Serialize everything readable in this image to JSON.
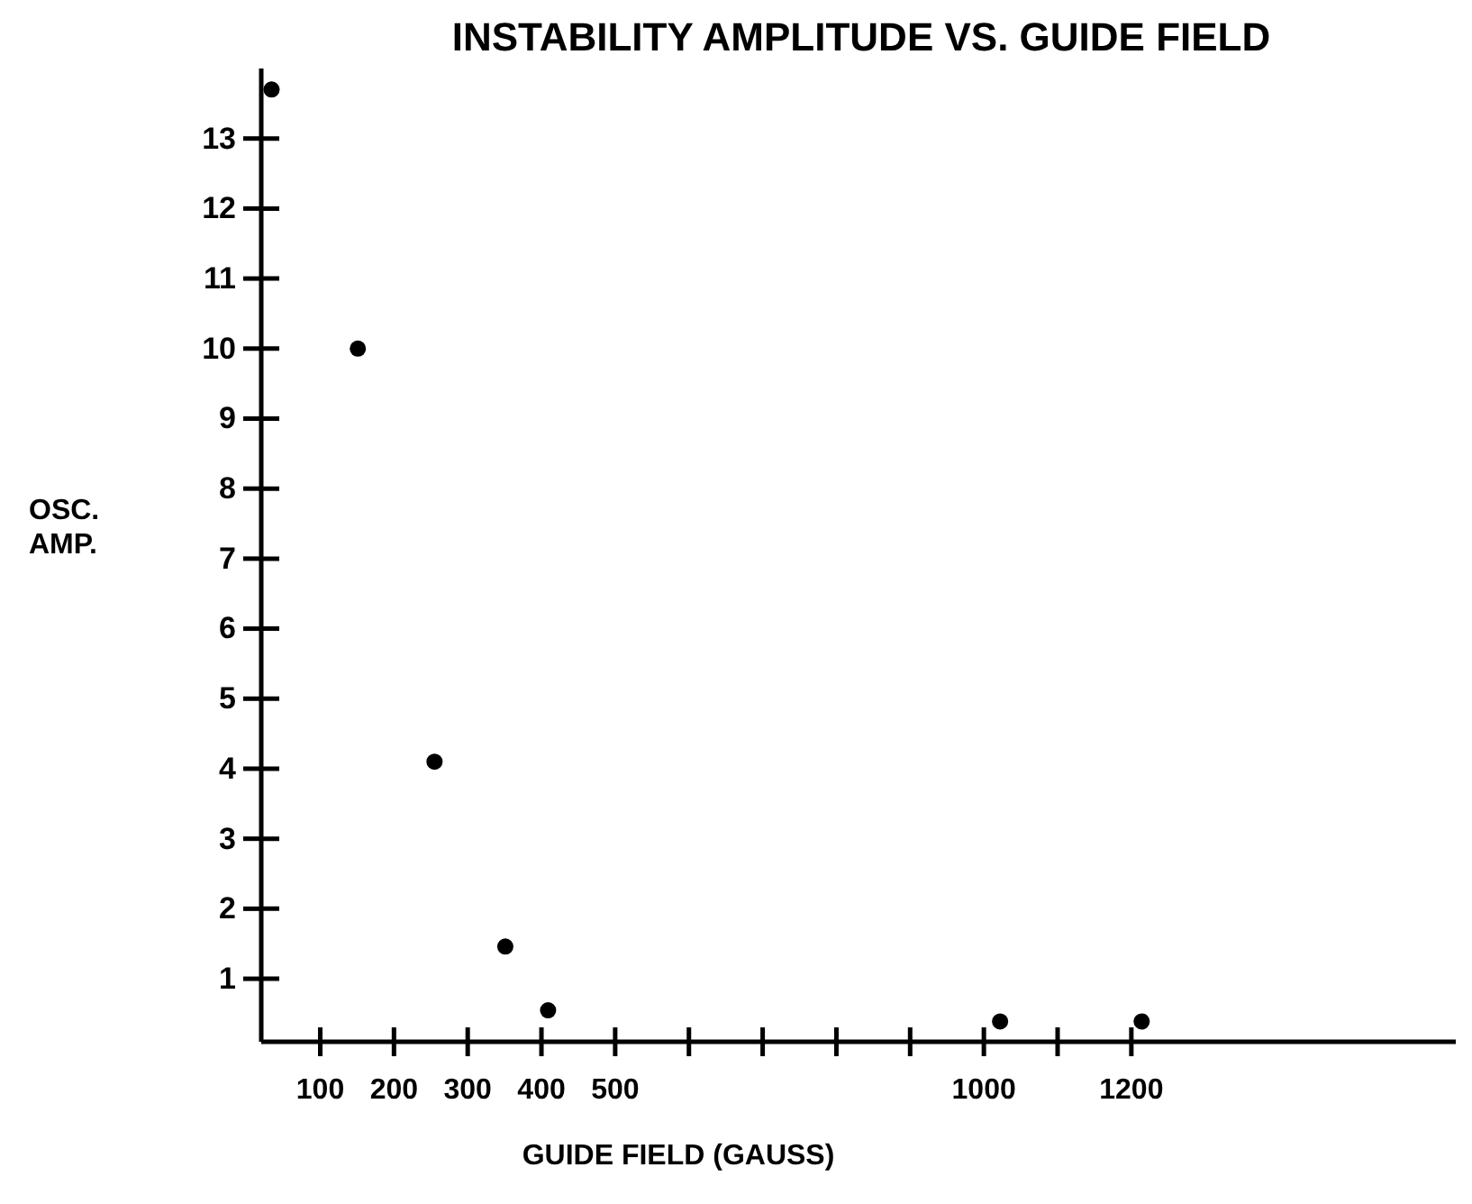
{
  "chart_data": {
    "type": "scatter",
    "title": "INSTABILITY AMPLITUDE VS. GUIDE FIELD",
    "xlabel": "GUIDE FIELD (GAUSS)",
    "ylabel": "OSC. AMP.",
    "x": [
      34,
      151,
      255,
      351,
      409,
      1022,
      1214
    ],
    "values": [
      13.7,
      10.0,
      4.1,
      1.46,
      0.55,
      0.39,
      0.39
    ],
    "color": "#000000",
    "marker": "circle",
    "grid": false,
    "xlim": [
      20,
      1640
    ],
    "xticks": [
      100,
      200,
      300,
      400,
      500,
      {
        "value": 600,
        "label": null
      },
      {
        "value": 700,
        "label": null
      },
      {
        "value": 800,
        "label": null
      },
      {
        "value": 900,
        "label": null
      },
      1000,
      {
        "value": 1100,
        "label": null
      },
      1200
    ],
    "ylim": [
      0.1,
      14
    ],
    "yticks": [
      1,
      2,
      3,
      4,
      5,
      6,
      7,
      8,
      9,
      10,
      11,
      12,
      13
    ]
  }
}
